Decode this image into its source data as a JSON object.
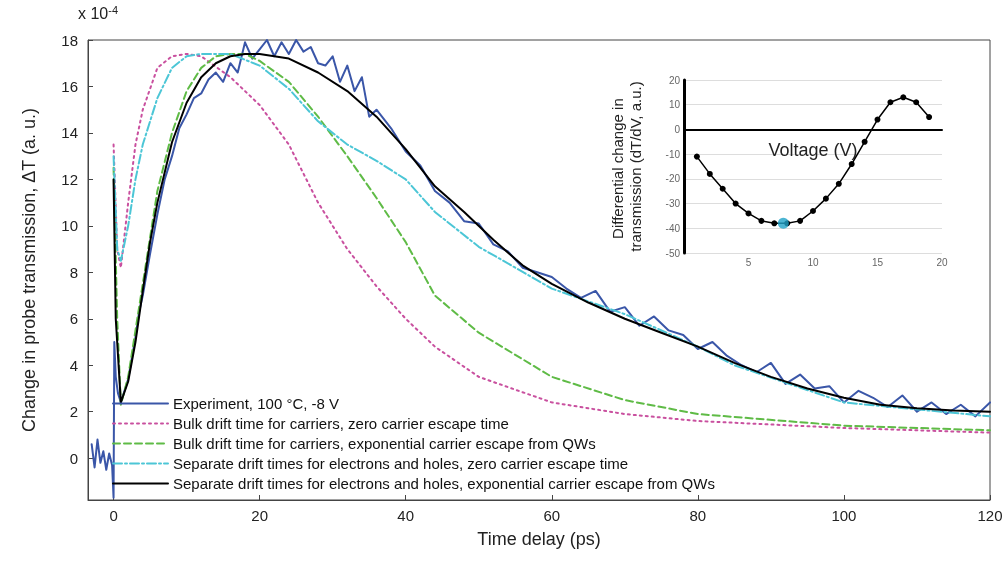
{
  "chart_data": [
    {
      "type": "line",
      "xlabel": "Time delay (ps)",
      "ylabel": "Change in probe transmission, ΔT (a. u.)",
      "annotations": [
        "x 10$^{-4}$"
      ],
      "xlim": [
        -3.5,
        120
      ],
      "xticks": [
        0,
        20,
        40,
        60,
        80,
        100,
        120
      ],
      "ylim": [
        -1.8,
        18
      ],
      "yticks": [
        0,
        2,
        4,
        6,
        8,
        10,
        12,
        14,
        16,
        18
      ],
      "grid": false,
      "legend": "bottom left",
      "marker": "none",
      "series": [
        {
          "name": "Experiment, 100 °C, -8 V",
          "color": "#3a56a8",
          "line_style": "solid",
          "x": [
            -3,
            -2.6,
            -2.2,
            -1.8,
            -1.4,
            -1,
            -0.6,
            -0.2,
            0,
            0.1,
            0.3,
            0.6,
            1,
            1.5,
            2,
            2.5,
            3,
            3.5,
            4,
            5,
            6,
            7,
            8,
            9,
            10,
            11,
            12,
            13,
            14,
            15,
            16,
            17,
            18,
            19,
            20,
            21,
            22,
            23,
            24,
            25,
            26,
            27,
            28,
            29,
            30,
            31,
            32,
            33,
            34,
            35,
            36,
            38,
            40,
            42,
            44,
            46,
            48,
            50,
            52,
            54,
            56,
            58,
            60,
            62,
            64,
            66,
            68,
            70,
            72,
            74,
            76,
            78,
            80,
            82,
            84,
            86,
            88,
            90,
            92,
            94,
            96,
            98,
            100,
            102,
            104,
            106,
            108,
            110,
            112,
            114,
            116,
            118,
            120
          ],
          "values": [
            0.6,
            -0.4,
            0.8,
            -0.2,
            0.3,
            -0.5,
            0.2,
            -0.3,
            -1.7,
            5,
            3.5,
            2.8,
            2.4,
            2.9,
            3.4,
            4.3,
            5.2,
            6.3,
            7.0,
            8.8,
            10.5,
            12.0,
            13.0,
            14.2,
            14.8,
            15.5,
            15.7,
            16.3,
            16.6,
            16.2,
            17.0,
            16.6,
            17.9,
            17.2,
            17.6,
            18.0,
            17.3,
            17.9,
            17.4,
            18.0,
            17.5,
            17.7,
            17.0,
            16.9,
            17.3,
            16.2,
            16.9,
            15.8,
            16.4,
            14.7,
            15.0,
            14.2,
            13.2,
            12.6,
            11.5,
            11.0,
            10.2,
            10.1,
            9.2,
            8.9,
            8.2,
            8.0,
            7.8,
            7.3,
            6.9,
            7.2,
            6.3,
            6.5,
            5.7,
            6.1,
            5.5,
            5.3,
            4.7,
            5.0,
            4.4,
            4.0,
            3.7,
            4.1,
            3.2,
            3.6,
            3.0,
            3.1,
            2.4,
            2.9,
            2.6,
            2.2,
            2.7,
            2.0,
            2.4,
            1.9,
            2.3,
            1.8,
            2.4
          ]
        },
        {
          "name": "Bulk drift time for carriers, zero carrier escape time",
          "color": "#c9509f",
          "line_style": "dotted",
          "x": [
            0,
            0.5,
            1,
            2,
            3,
            4,
            6,
            8,
            10,
            12,
            16,
            20,
            24,
            28,
            32,
            36,
            40,
            44,
            50,
            60,
            70,
            80,
            100,
            120
          ],
          "values": [
            13.5,
            9,
            8.2,
            11,
            13.5,
            15,
            16.8,
            17.3,
            17.4,
            17.3,
            16.4,
            15.2,
            13.5,
            11,
            9,
            7.4,
            6.0,
            4.8,
            3.5,
            2.4,
            1.9,
            1.6,
            1.3,
            1.1
          ]
        },
        {
          "name": "Bulk drift time for carriers, exponential carrier escape from QWs",
          "color": "#5fbb46",
          "line_style": "dashed",
          "x": [
            0,
            0.5,
            1,
            2,
            4,
            6,
            8,
            10,
            12,
            14,
            16,
            18,
            20,
            24,
            28,
            32,
            36,
            40,
            44,
            50,
            60,
            70,
            80,
            100,
            120
          ],
          "values": [
            12.5,
            6,
            2.3,
            3.5,
            7.5,
            11.5,
            14,
            15.8,
            16.8,
            17.3,
            17.4,
            17.4,
            17.1,
            16.2,
            14.7,
            13,
            11.2,
            9.3,
            7.0,
            5.4,
            3.5,
            2.5,
            1.9,
            1.4,
            1.2
          ]
        },
        {
          "name": "Separate drift times for electrons and holes, zero carrier escape time",
          "color": "#4cc6d6",
          "line_style": "dashdot",
          "x": [
            0,
            0.5,
            1,
            2,
            3,
            4,
            6,
            8,
            10,
            12,
            16,
            20,
            24,
            28,
            32,
            36,
            40,
            44,
            50,
            60,
            70,
            80,
            85,
            100,
            120
          ],
          "values": [
            13,
            9,
            8.5,
            10,
            12,
            13.5,
            15.5,
            16.8,
            17.3,
            17.4,
            17.4,
            16.9,
            15.9,
            14.5,
            13.5,
            12.8,
            12,
            10.6,
            9.1,
            7.3,
            6.2,
            4.8,
            4.0,
            2.4,
            1.8
          ]
        },
        {
          "name": "Separate drift times for electrons and holes, exponential carrier escape from QWs",
          "color": "#000000",
          "line_style": "solid",
          "x": [
            0,
            0.3,
            1,
            2,
            3,
            4,
            5,
            6,
            8,
            10,
            12,
            14,
            16,
            18,
            20,
            24,
            28,
            32,
            36,
            40,
            44,
            48,
            52,
            56,
            60,
            65,
            70,
            75,
            80,
            85,
            90,
            95,
            100,
            105,
            110,
            115,
            120
          ],
          "values": [
            12,
            6,
            2.4,
            3.3,
            5,
            7.2,
            9.3,
            11,
            13.6,
            15.3,
            16.4,
            17,
            17.3,
            17.4,
            17.4,
            17.2,
            16.6,
            15.8,
            14.7,
            13.3,
            11.7,
            10.6,
            9.4,
            8.3,
            7.5,
            6.7,
            6.0,
            5.4,
            4.8,
            4.1,
            3.5,
            3.0,
            2.6,
            2.3,
            2.15,
            2.05,
            2.0
          ]
        }
      ]
    },
    {
      "type": "line",
      "xlabel": "Voltage (V)",
      "ylabel": "Differential change in transmission (dT/dV, a.u.)",
      "xlim": [
        0,
        20
      ],
      "xticks": [
        5,
        10,
        15,
        20
      ],
      "ylim": [
        -50,
        20
      ],
      "yticks": [
        -50,
        -40,
        -30,
        -20,
        -10,
        0,
        10,
        20
      ],
      "grid": "y",
      "legend": false,
      "marker": "circle",
      "series": [
        {
          "color": "#000000",
          "line_style": "solid",
          "x": [
            1,
            2,
            3,
            4,
            5,
            6,
            7,
            8,
            9,
            10,
            11,
            12,
            13,
            14,
            15,
            16,
            17,
            18,
            19
          ],
          "values": [
            -11,
            -18,
            -24,
            -30,
            -34,
            -37,
            -38,
            -38,
            -37,
            -33,
            -28,
            -22,
            -14,
            -5,
            4,
            11,
            13,
            11,
            5
          ]
        },
        {
          "type": "scatter",
          "color": "#1fa3c8",
          "x": [
            7.7
          ],
          "values": [
            -38
          ]
        }
      ]
    }
  ]
}
